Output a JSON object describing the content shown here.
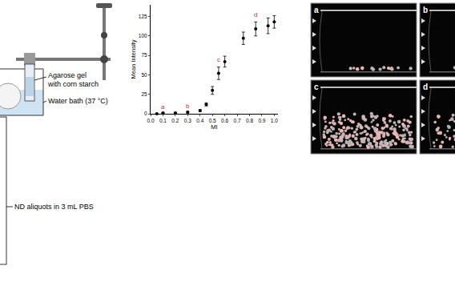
{
  "chart_data": {
    "type": "scatter",
    "x": [
      0.05,
      0.1,
      0.2,
      0.3,
      0.4,
      0.45,
      0.5,
      0.55,
      0.6,
      0.75,
      0.85,
      0.95,
      1.0
    ],
    "values": [
      0,
      1,
      1,
      2,
      4,
      12,
      30,
      52,
      67,
      97,
      109,
      113,
      118
    ],
    "errors": [
      0.5,
      0.5,
      0.5,
      1,
      1,
      2,
      5,
      8,
      7,
      8,
      9,
      10,
      8
    ],
    "color": "#000000",
    "marker": "circle",
    "xlabel": "MI",
    "ylabel": "Mean Intensity",
    "xlim": [
      0,
      1.03
    ],
    "xticks": [
      {
        "value": 0,
        "label": "0.0"
      },
      0.1,
      0.2,
      0.3,
      0.4,
      0.5,
      0.6,
      0.7,
      0.8,
      0.9,
      {
        "value": 1,
        "label": "1.0"
      }
    ],
    "ylim": [
      0,
      140
    ],
    "yticks": [
      0,
      25,
      50,
      75,
      100,
      125
    ],
    "grid": false,
    "annotations": [
      {
        "text": "a",
        "x": 0.1,
        "y": 9
      },
      {
        "text": "b",
        "x": 0.3,
        "y": 10
      },
      {
        "text": "c",
        "x": 0.55,
        "y": 70
      },
      {
        "text": "d",
        "x": 0.85,
        "y": 127
      }
    ]
  },
  "diagram": {
    "gel_label": [
      "Agarose gel",
      "with corn starch"
    ],
    "bath_label": "Water bath (37 °C)",
    "aliquot_label": "ND aliquots in 3 mL PBS"
  },
  "panels": [
    "a",
    "b",
    "c",
    "d"
  ]
}
